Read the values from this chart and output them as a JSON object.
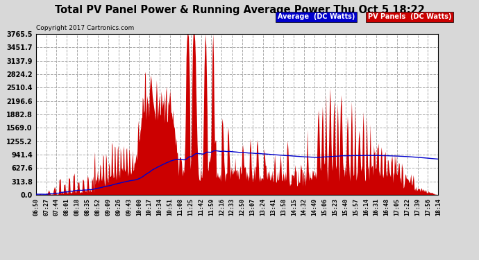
{
  "title": "Total PV Panel Power & Running Average Power Thu Oct 5 18:22",
  "copyright": "Copyright 2017 Cartronics.com",
  "legend_avg": "Average  (DC Watts)",
  "legend_pv": "PV Panels  (DC Watts)",
  "ymax": 3765.5,
  "yticks": [
    0.0,
    313.8,
    627.6,
    941.4,
    1255.2,
    1569.0,
    1882.8,
    2196.6,
    2510.4,
    2824.2,
    3137.9,
    3451.7,
    3765.5
  ],
  "bg_color": "#d8d8d8",
  "plot_bg": "#ffffff",
  "grid_color": "#bbbbbb",
  "pv_color": "#cc0000",
  "avg_color": "#0000cc",
  "x_labels": [
    "06:50",
    "07:27",
    "07:44",
    "08:01",
    "08:18",
    "08:35",
    "08:52",
    "09:09",
    "09:26",
    "09:43",
    "10:00",
    "10:17",
    "10:34",
    "10:51",
    "11:08",
    "11:25",
    "11:42",
    "11:59",
    "12:16",
    "12:33",
    "12:50",
    "13:07",
    "13:24",
    "13:41",
    "13:58",
    "14:15",
    "14:32",
    "14:49",
    "15:06",
    "15:23",
    "15:40",
    "15:57",
    "16:14",
    "16:31",
    "16:48",
    "17:05",
    "17:22",
    "17:39",
    "17:56",
    "18:14"
  ]
}
